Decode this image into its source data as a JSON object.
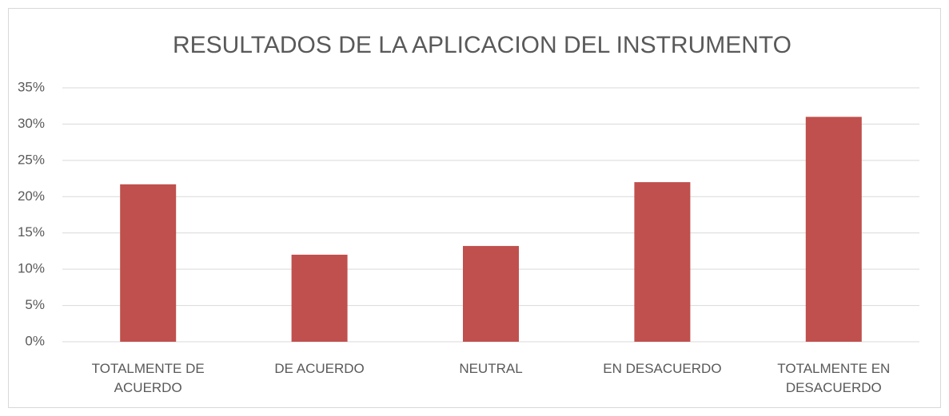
{
  "chart_data": {
    "type": "bar",
    "title": "RESULTADOS DE LA APLICACION DEL INSTRUMENTO",
    "categories": [
      "TOTALMENTE DE ACUERDO",
      "DE ACUERDO",
      "NEUTRAL",
      "EN DESACUERDO",
      "TOTALMENTE EN DESACUERDO"
    ],
    "values": [
      21.7,
      12,
      13.2,
      22,
      31
    ],
    "color": "#c0504d",
    "ylim": [
      0,
      35
    ],
    "yticks": [
      {
        "value": 0,
        "label": "0%"
      },
      {
        "value": 5,
        "label": "5%"
      },
      {
        "value": 10,
        "label": "10%"
      },
      {
        "value": 15,
        "label": "15%"
      },
      {
        "value": 20,
        "label": "20%"
      },
      {
        "value": 25,
        "label": "25%"
      },
      {
        "value": 30,
        "label": "30%"
      },
      {
        "value": 35,
        "label": "35%"
      }
    ],
    "grid": true
  }
}
